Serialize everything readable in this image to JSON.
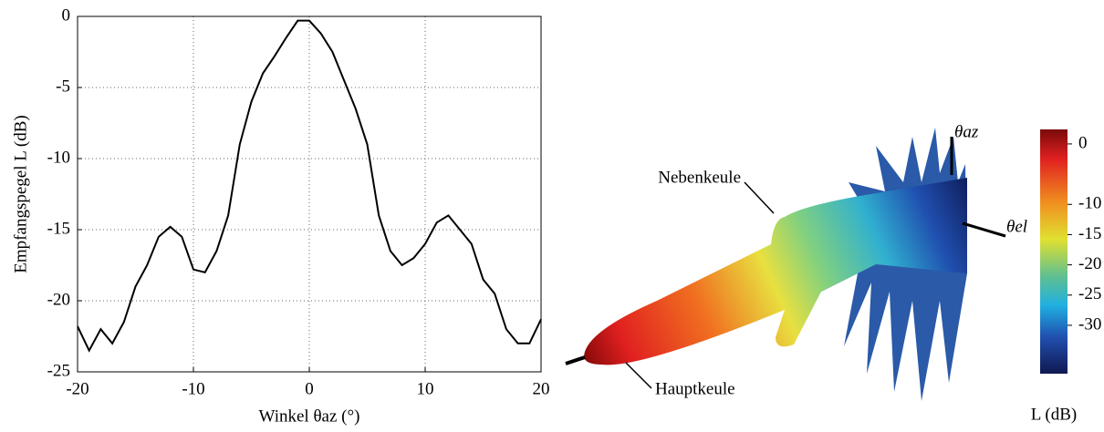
{
  "chart_data": [
    {
      "type": "line",
      "ylabel": "Empfangspegel L (dB)",
      "xlabel": "Winkel θaz (°)",
      "xlim": [
        -20,
        20
      ],
      "ylim": [
        -25,
        0
      ],
      "xticks": [
        -20,
        -10,
        0,
        10,
        20
      ],
      "yticks": [
        -25,
        -20,
        -15,
        -10,
        -5,
        0
      ],
      "grid": true,
      "x": [
        -20,
        -19,
        -18,
        -17,
        -16,
        -15,
        -14,
        -13,
        -12,
        -11,
        -10,
        -9,
        -8,
        -7,
        -6,
        -5,
        -4,
        -3,
        -2,
        -1,
        0,
        1,
        2,
        3,
        4,
        5,
        6,
        7,
        8,
        9,
        10,
        11,
        12,
        13,
        14,
        15,
        16,
        17,
        18,
        19,
        20
      ],
      "series": [
        {
          "color": "#000000",
          "values": [
            -21.8,
            -23.5,
            -22,
            -23,
            -21.5,
            -19,
            -17.5,
            -15.5,
            -14.8,
            -15.5,
            -17.8,
            -18,
            -16.5,
            -14,
            -9,
            -6,
            -4,
            -2.8,
            -1.5,
            -0.3,
            -0.3,
            -1.2,
            -2.5,
            -4.5,
            -6.5,
            -9,
            -14,
            -16.5,
            -17.5,
            -17,
            -16,
            -14.5,
            -14,
            -15,
            -16,
            -18.5,
            -19.5,
            -22,
            -23,
            -23,
            -21.3
          ]
        }
      ]
    },
    {
      "type": "colorbar",
      "annotations": [
        "Nebenkeule",
        "Hauptkeule",
        "θaz",
        "θel"
      ],
      "label": "L (dB)",
      "ylim": [
        -38,
        2.4
      ],
      "yticks": [
        0,
        -10,
        -15,
        -20,
        -25,
        -30
      ]
    }
  ]
}
